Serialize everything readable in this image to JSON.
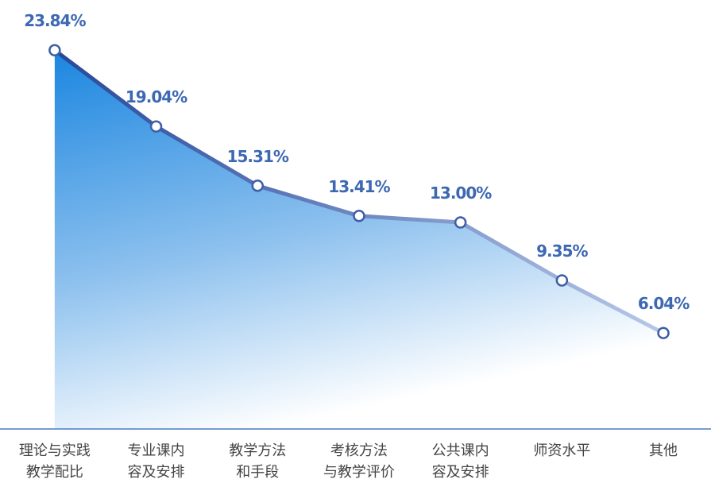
{
  "chart_data": {
    "type": "area",
    "categories": [
      "理论与实践\n教学配比",
      "专业课内\n容及安排",
      "教学方法\n和手段",
      "考核方法\n与教学评价",
      "公共课内\n容及安排",
      "师资水平",
      "其他"
    ],
    "values": [
      23.84,
      19.04,
      15.31,
      13.41,
      13.0,
      9.35,
      6.04
    ],
    "value_labels": [
      "23.84%",
      "19.04%",
      "15.31%",
      "13.41%",
      "13.00%",
      "9.35%",
      "6.04%"
    ],
    "color": "#1b86e0",
    "ylim": [
      0,
      25
    ]
  }
}
